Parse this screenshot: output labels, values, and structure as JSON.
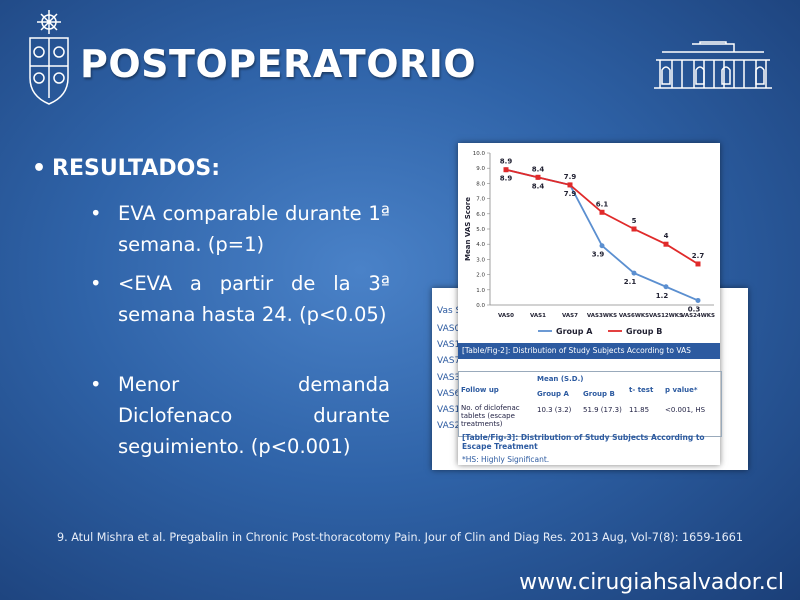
{
  "header": {
    "title": "POSTOPERATORIO"
  },
  "bullets": {
    "heading": "RESULTADOS:",
    "items": [
      "EVA comparable durante 1ª semana. (p=1)",
      "<EVA  a partir de la 3ª semana hasta 24. (p<0.05)",
      "Menor demanda Diclofenaco durante seguimiento. (p<0.001)"
    ]
  },
  "chart_data": {
    "type": "line",
    "y_label": "Mean VAS Score",
    "categories": [
      "VAS0",
      "VAS1",
      "VAS7",
      "VAS3WKS",
      "VAS6WKS",
      "VAS12WKS",
      "VAS24WKS"
    ],
    "series": [
      {
        "name": "Group A",
        "color": "#5b8fd0",
        "values": [
          8.9,
          8.4,
          7.9,
          3.9,
          2.1,
          1.2,
          0.3
        ]
      },
      {
        "name": "Group B",
        "color": "#e02a2a",
        "values": [
          8.9,
          8.4,
          7.9,
          6.1,
          5,
          4,
          2.7
        ]
      }
    ],
    "ylim": [
      0,
      10
    ],
    "yticks": [
      {
        "value": 0,
        "label": "0.0"
      },
      {
        "value": 1,
        "label": "1.0"
      },
      {
        "value": 2,
        "label": "2.0"
      },
      {
        "value": 3,
        "label": "3.0"
      },
      {
        "value": 4,
        "label": "4.0"
      },
      {
        "value": 5,
        "label": "5.0"
      },
      {
        "value": 6,
        "label": "6.0"
      },
      {
        "value": 7,
        "label": "7.0"
      },
      {
        "value": 8,
        "label": "8.0"
      },
      {
        "value": 9,
        "label": "9.0"
      },
      {
        "value": 10,
        "label": "10.0"
      }
    ],
    "legend": "bottom"
  },
  "figure2": {
    "caption": "[Table/Fig-2]: Distribution of Study Subjects According to VAS"
  },
  "back_table": {
    "header": "Vas S",
    "rows": [
      "VAS0",
      "VAS1",
      "VAS7",
      "VAS3",
      "VAS6",
      "VAS1",
      "VAS2"
    ]
  },
  "table": {
    "header": [
      "Follow up",
      "Mean (S.D.)",
      "t- test",
      "p value*"
    ],
    "subheader": [
      "Group A",
      "Group B"
    ],
    "row": [
      "No. of diclofenac tablets (escape treatments)",
      "10.3 (3.2)",
      "51.9 (17.3)",
      "11.85",
      "<0.001, HS"
    ],
    "caption": "[Table/Fig-3]: Distribution of Study Subjects According to Escape Treatment",
    "note": "*HS: Highly Significant."
  },
  "footer": {
    "citation": "9. Atul Mishra et al. Pregabalin in Chronic Post-thoracotomy Pain. Jour of Clin and Diag Res. 2013 Aug, Vol-7(8): 1659-1661",
    "website": "www.cirugiahsalvador.cl"
  }
}
